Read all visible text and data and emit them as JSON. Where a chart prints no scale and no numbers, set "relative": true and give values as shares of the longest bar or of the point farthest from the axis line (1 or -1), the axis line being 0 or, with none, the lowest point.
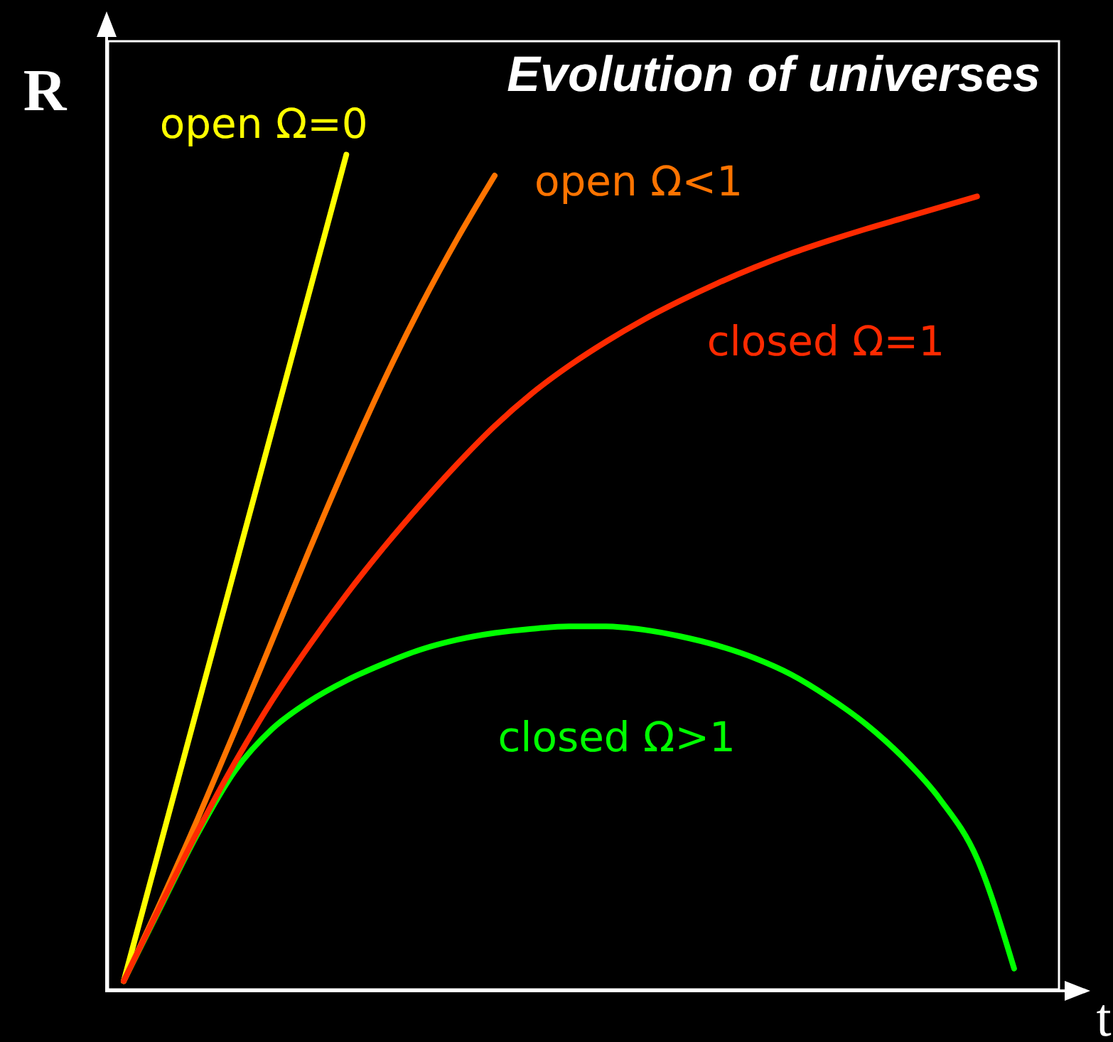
{
  "chart_data": {
    "type": "line",
    "title": "Evolution of universes",
    "xlabel": "t",
    "ylabel": "R",
    "relative": true,
    "categories": [
      null,
      null,
      null,
      null,
      null,
      null,
      null,
      null,
      null,
      null,
      null,
      null,
      null,
      null,
      null,
      null,
      null,
      null,
      null,
      null,
      null,
      null,
      null,
      null,
      null
    ],
    "series": [
      {
        "name": "open Ω=0",
        "color": "#ffff00",
        "values": [
          0.01,
          0.175,
          0.34,
          0.505,
          0.67,
          0.835,
          1.0,
          null,
          null,
          null,
          null,
          null,
          null,
          null,
          null,
          null,
          null,
          null,
          null,
          null,
          null,
          null,
          null,
          null,
          null
        ]
      },
      {
        "name": "open Ω<1",
        "color": "#ff7400",
        "values": [
          0.01,
          0.105,
          0.205,
          0.31,
          0.418,
          0.526,
          0.63,
          0.728,
          0.818,
          0.9,
          0.975,
          null,
          null,
          null,
          null,
          null,
          null,
          null,
          null,
          null,
          null,
          null,
          null,
          null,
          null
        ]
      },
      {
        "name": "closed Ω=1",
        "color": "#ff2a00",
        "values": [
          0.01,
          0.101,
          0.19,
          0.272,
          0.346,
          0.412,
          0.473,
          0.529,
          0.581,
          0.63,
          0.675,
          0.714,
          0.747,
          0.776,
          0.802,
          0.825,
          0.846,
          0.865,
          0.882,
          0.897,
          0.911,
          0.924,
          0.937,
          0.95,
          null
        ]
      },
      {
        "name": "closed Ω>1",
        "color": "#00ff00",
        "values": [
          0.01,
          0.099,
          0.187,
          0.262,
          0.312,
          0.345,
          0.37,
          0.39,
          0.407,
          0.419,
          0.427,
          0.432,
          0.435,
          0.435,
          0.431,
          0.423,
          0.412,
          0.397,
          0.377,
          0.35,
          0.318,
          0.278,
          0.228,
          0.157,
          0.025
        ]
      }
    ]
  }
}
